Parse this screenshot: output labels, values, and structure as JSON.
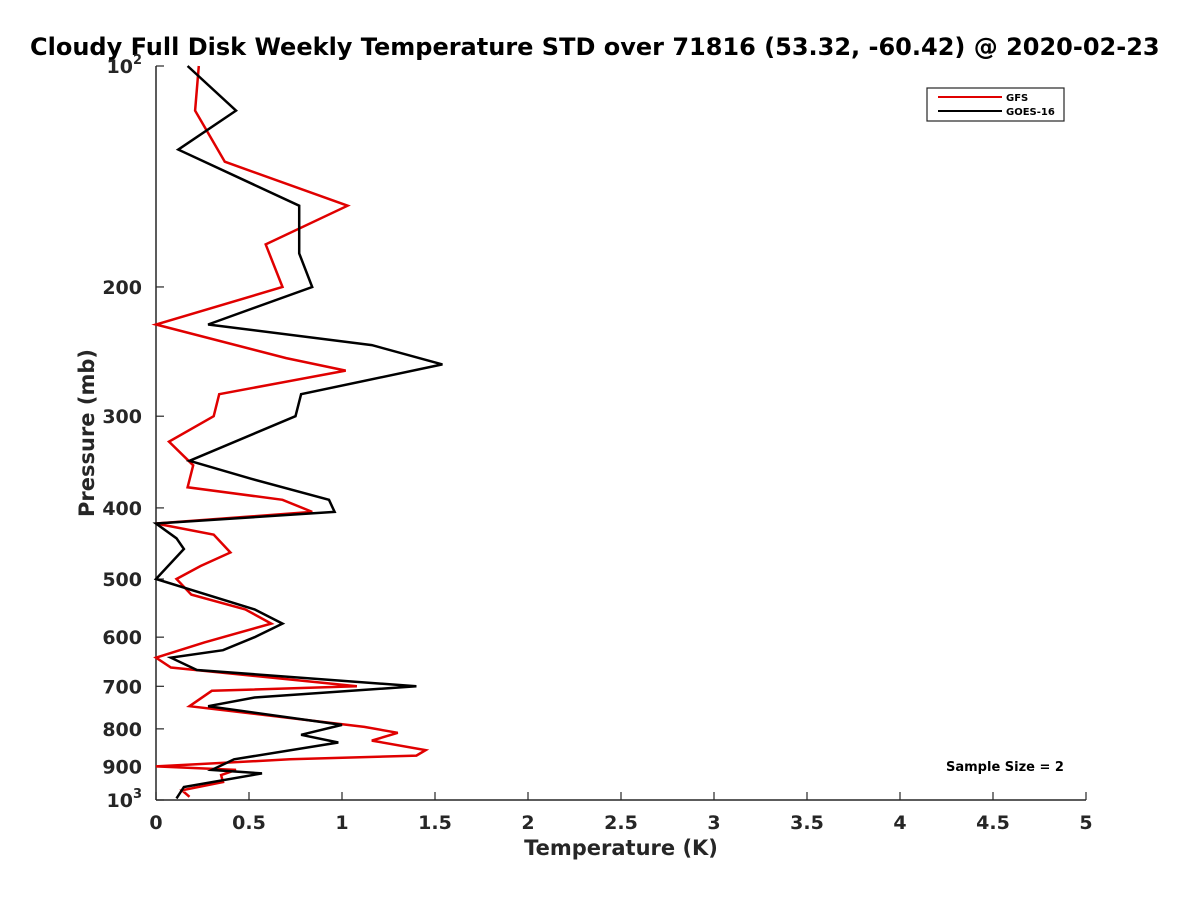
{
  "chart_data": {
    "type": "line",
    "title": "Cloudy Full Disk Weekly Temperature STD over 71816 (53.32, -60.42) @ 2020-02-23",
    "xlabel": "Temperature (K)",
    "ylabel": "Pressure (mb)",
    "xlim": [
      0,
      5
    ],
    "ylim": [
      100,
      1000
    ],
    "yscale": "log",
    "y_reversed": true,
    "xticks": [
      {
        "value": 0,
        "label": "0"
      },
      {
        "value": 0.5,
        "label": "0.5"
      },
      {
        "value": 1,
        "label": "1"
      },
      {
        "value": 1.5,
        "label": "1.5"
      },
      {
        "value": 2,
        "label": "2"
      },
      {
        "value": 2.5,
        "label": "2.5"
      },
      {
        "value": 3,
        "label": "3"
      },
      {
        "value": 3.5,
        "label": "3.5"
      },
      {
        "value": 4,
        "label": "4"
      },
      {
        "value": 4.5,
        "label": "4.5"
      },
      {
        "value": 5,
        "label": "5"
      }
    ],
    "yticks": [
      {
        "value": 100,
        "base": "10",
        "exp": "2"
      },
      {
        "value": 200,
        "label": "200"
      },
      {
        "value": 300,
        "label": "300"
      },
      {
        "value": 400,
        "label": "400"
      },
      {
        "value": 500,
        "label": "500"
      },
      {
        "value": 600,
        "label": "600"
      },
      {
        "value": 700,
        "label": "700"
      },
      {
        "value": 800,
        "label": "800"
      },
      {
        "value": 900,
        "label": "900"
      },
      {
        "value": 1000,
        "base": "10",
        "exp": "3"
      }
    ],
    "grid": false,
    "legend_position": "top-right",
    "series": [
      {
        "name": "GFS",
        "color": "#e00000",
        "points": [
          [
            0.23,
            100
          ],
          [
            0.21,
            115
          ],
          [
            0.37,
            135
          ],
          [
            1.03,
            155
          ],
          [
            0.59,
            175
          ],
          [
            0.68,
            200
          ],
          [
            0.0,
            225
          ],
          [
            0.7,
            250
          ],
          [
            1.02,
            260
          ],
          [
            0.34,
            280
          ],
          [
            0.31,
            300
          ],
          [
            0.07,
            325
          ],
          [
            0.2,
            350
          ],
          [
            0.17,
            375
          ],
          [
            0.68,
            390
          ],
          [
            0.84,
            405
          ],
          [
            0.0,
            420
          ],
          [
            0.31,
            435
          ],
          [
            0.4,
            460
          ],
          [
            0.24,
            480
          ],
          [
            0.11,
            500
          ],
          [
            0.19,
            525
          ],
          [
            0.48,
            550
          ],
          [
            0.62,
            575
          ],
          [
            0.26,
            610
          ],
          [
            0.0,
            640
          ],
          [
            0.08,
            660
          ],
          [
            1.08,
            700
          ],
          [
            0.3,
            710
          ],
          [
            0.18,
            745
          ],
          [
            0.47,
            760
          ],
          [
            1.12,
            795
          ],
          [
            1.3,
            810
          ],
          [
            1.16,
            830
          ],
          [
            1.45,
            855
          ],
          [
            1.4,
            870
          ],
          [
            0.72,
            880
          ],
          [
            0.0,
            900
          ],
          [
            0.43,
            910
          ],
          [
            0.35,
            925
          ],
          [
            0.36,
            945
          ],
          [
            0.14,
            970
          ],
          [
            0.18,
            990
          ]
        ]
      },
      {
        "name": "GOES-16",
        "color": "#000000",
        "points": [
          [
            0.17,
            100
          ],
          [
            0.43,
            115
          ],
          [
            0.12,
            130
          ],
          [
            0.77,
            155
          ],
          [
            0.77,
            180
          ],
          [
            0.84,
            200
          ],
          [
            0.28,
            225
          ],
          [
            1.16,
            240
          ],
          [
            1.54,
            255
          ],
          [
            0.78,
            280
          ],
          [
            0.75,
            300
          ],
          [
            0.18,
            345
          ],
          [
            0.51,
            365
          ],
          [
            0.93,
            390
          ],
          [
            0.96,
            405
          ],
          [
            0.0,
            420
          ],
          [
            0.11,
            440
          ],
          [
            0.15,
            455
          ],
          [
            0.0,
            500
          ],
          [
            0.53,
            550
          ],
          [
            0.68,
            575
          ],
          [
            0.53,
            600
          ],
          [
            0.36,
            625
          ],
          [
            0.08,
            640
          ],
          [
            0.22,
            665
          ],
          [
            1.4,
            700
          ],
          [
            0.53,
            725
          ],
          [
            0.28,
            745
          ],
          [
            1.0,
            790
          ],
          [
            0.78,
            815
          ],
          [
            0.98,
            835
          ],
          [
            0.42,
            880
          ],
          [
            0.3,
            910
          ],
          [
            0.57,
            920
          ],
          [
            0.15,
            960
          ],
          [
            0.11,
            995
          ]
        ]
      }
    ],
    "annotation": "Sample Size = 2"
  }
}
